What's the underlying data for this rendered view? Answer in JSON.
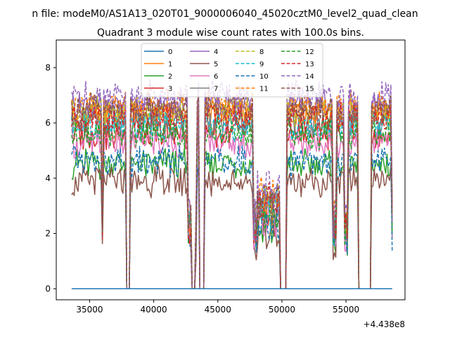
{
  "chart_data": {
    "type": "line",
    "suptitle": "n file: modeM0/AS1A13_020T01_9000006040_45020cztM0_level2_quad_clean",
    "title": "Quadrant 3 module wise count rates with 100.0s bins.",
    "xlabel": "",
    "ylabel": "",
    "x_offset_label": "+4.438e8",
    "xlim": [
      32400,
      59600
    ],
    "ylim": [
      -0.4,
      9.0
    ],
    "x_ticks": [
      35000,
      40000,
      45000,
      50000,
      55000
    ],
    "x_tick_labels": [
      "35000",
      "40000",
      "45000",
      "50000",
      "55000"
    ],
    "y_ticks": [
      0,
      2,
      4,
      6,
      8
    ],
    "y_tick_labels": [
      "0",
      "2",
      "4",
      "6",
      "8"
    ],
    "grid": false,
    "legend_position": "upper-center",
    "x_start": 33600,
    "x_end": 58600,
    "x_step": 100,
    "segments": [
      [
        33600,
        35900,
        "h"
      ],
      [
        36000,
        36000,
        "g"
      ],
      [
        36100,
        37800,
        "h"
      ],
      [
        37900,
        38100,
        "z"
      ],
      [
        38200,
        42600,
        "h"
      ],
      [
        42700,
        42900,
        "g"
      ],
      [
        43000,
        43200,
        "z"
      ],
      [
        43300,
        43300,
        "g"
      ],
      [
        43400,
        43500,
        "h"
      ],
      [
        43600,
        43900,
        "z"
      ],
      [
        44000,
        47700,
        "h"
      ],
      [
        47800,
        48000,
        "g"
      ],
      [
        48100,
        49800,
        "l"
      ],
      [
        49900,
        50300,
        "z"
      ],
      [
        50400,
        53900,
        "h"
      ],
      [
        54000,
        54200,
        "g"
      ],
      [
        54300,
        54800,
        "h"
      ],
      [
        54900,
        55100,
        "g"
      ],
      [
        55200,
        55900,
        "h"
      ],
      [
        56000,
        56900,
        "z"
      ],
      [
        57000,
        58500,
        "h"
      ],
      [
        58600,
        58600,
        "g"
      ]
    ],
    "series": [
      {
        "name": "0",
        "color": "#1f77b4",
        "dash": "solid",
        "level": 0.0
      },
      {
        "name": "1",
        "color": "#ff7f0e",
        "dash": "solid",
        "level": 6.3
      },
      {
        "name": "2",
        "color": "#2ca02c",
        "dash": "solid",
        "level": 4.5
      },
      {
        "name": "3",
        "color": "#d62728",
        "dash": "solid",
        "level": 5.6
      },
      {
        "name": "4",
        "color": "#9467bd",
        "dash": "solid",
        "level": 6.6
      },
      {
        "name": "5",
        "color": "#8c564b",
        "dash": "solid",
        "level": 3.9
      },
      {
        "name": "6",
        "color": "#e377c2",
        "dash": "solid",
        "level": 5.3
      },
      {
        "name": "7",
        "color": "#7f7f7f",
        "dash": "solid",
        "level": 6.0
      },
      {
        "name": "8",
        "color": "#bcbd22",
        "dash": "dashed",
        "level": 6.4
      },
      {
        "name": "9",
        "color": "#17becf",
        "dash": "dashed",
        "level": 5.9
      },
      {
        "name": "10",
        "color": "#1f77b4",
        "dash": "dashed",
        "level": 4.6
      },
      {
        "name": "11",
        "color": "#ff7f0e",
        "dash": "dashed",
        "level": 6.6
      },
      {
        "name": "12",
        "color": "#2ca02c",
        "dash": "dashed",
        "level": 5.6
      },
      {
        "name": "13",
        "color": "#d62728",
        "dash": "dashed",
        "level": 6.2
      },
      {
        "name": "14",
        "color": "#9467bd",
        "dash": "dashed",
        "level": 7.0
      },
      {
        "name": "15",
        "color": "#8c564b",
        "dash": "dashed",
        "level": 6.5
      }
    ]
  }
}
